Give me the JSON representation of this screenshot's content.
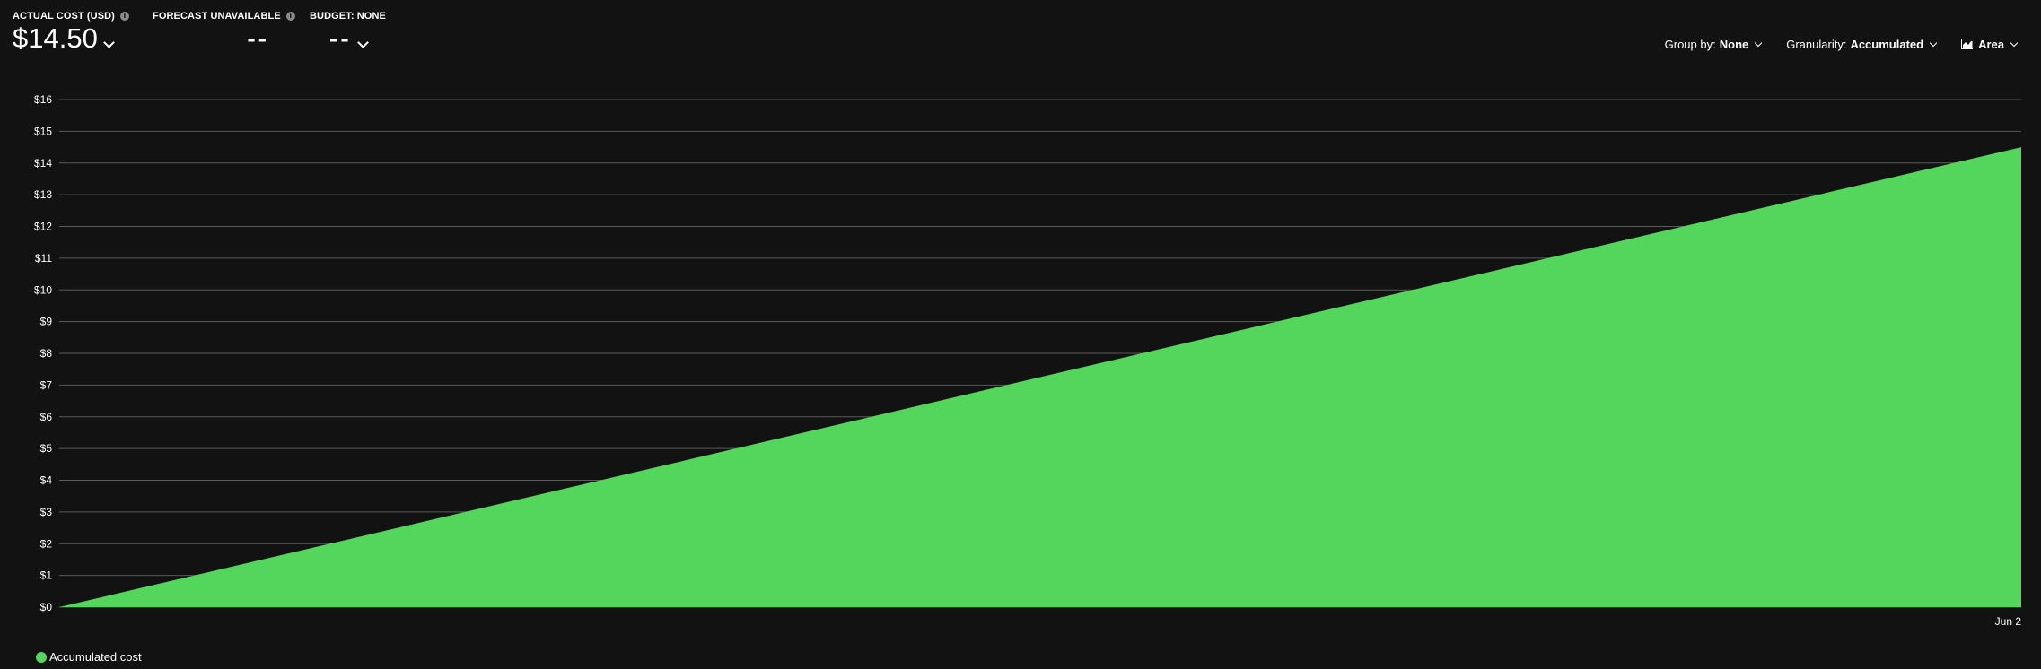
{
  "kpis": {
    "actual_cost": {
      "label": "ACTUAL COST (USD)",
      "value": "$14.50"
    },
    "forecast": {
      "label": "FORECAST UNAVAILABLE",
      "value": "--"
    },
    "budget": {
      "label": "BUDGET: NONE",
      "value": "--"
    }
  },
  "controls": {
    "group_by": {
      "label": "Group by:",
      "value": "None"
    },
    "granularity": {
      "label": "Granularity:",
      "value": "Accumulated"
    },
    "chart_type": {
      "value": "Area",
      "icon": "area-chart-icon"
    }
  },
  "legend": {
    "label": "Accumulated cost",
    "color": "#54d55b"
  },
  "colors": {
    "background": "#121212",
    "gridline": "#5a5a5a",
    "area": "#54d55b"
  },
  "chart_data": {
    "type": "area",
    "x": [
      "",
      "Jun 2"
    ],
    "series": [
      {
        "name": "Accumulated cost",
        "values": [
          0,
          14.5
        ]
      }
    ],
    "ylim": [
      0,
      16
    ],
    "yticks": [
      "$0",
      "$1",
      "$2",
      "$3",
      "$4",
      "$5",
      "$6",
      "$7",
      "$8",
      "$9",
      "$10",
      "$11",
      "$12",
      "$13",
      "$14",
      "$15",
      "$16"
    ],
    "xtick_labels": [
      "Jun 2"
    ],
    "grid": true,
    "legend_position": "bottom-left"
  }
}
